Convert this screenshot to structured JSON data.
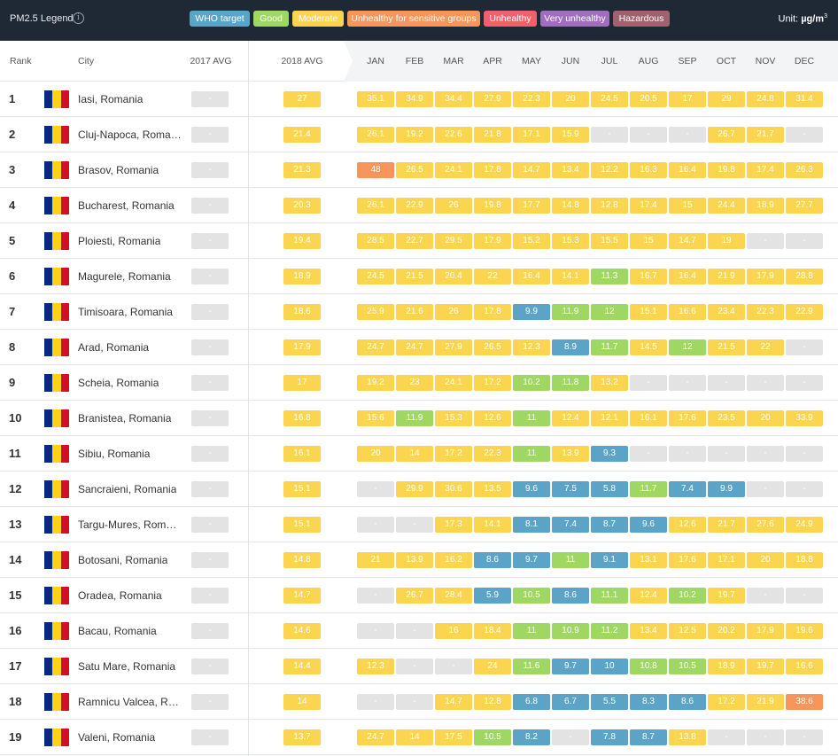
{
  "legend": {
    "title": "PM2.5 Legend",
    "info_icon": "info-icon",
    "items": [
      {
        "label": "WHO target",
        "color": "#5ba3c7"
      },
      {
        "label": "Good",
        "color": "#9ed761"
      },
      {
        "label": "Moderate",
        "color": "#fbd54f"
      },
      {
        "label": "Unhealthy for sensitive groups",
        "color": "#f7955a"
      },
      {
        "label": "Unhealthy",
        "color": "#f2616b"
      },
      {
        "label": "Very unhealthy",
        "color": "#a16dbf"
      },
      {
        "label": "Hazardous",
        "color": "#a0626e"
      }
    ],
    "unit_prefix": "Unit:",
    "unit_value": "µg/m",
    "unit_sup": "3"
  },
  "header": {
    "rank": "Rank",
    "city": "City",
    "avg2017": "2017 AVG",
    "avg2018": "2018 AVG",
    "months": [
      "JAN",
      "FEB",
      "MAR",
      "APR",
      "MAY",
      "JUN",
      "JUL",
      "AUG",
      "SEP",
      "OCT",
      "NOV",
      "DEC"
    ]
  },
  "flag_colors": [
    "#002b7f",
    "#fcd116",
    "#ce1126"
  ],
  "empty_color": "#e3e3e3",
  "empty_text": "-",
  "rows": [
    {
      "rank": "1",
      "city": "Iasi, Romania",
      "avg2017": "-",
      "avg2018": "27",
      "months": [
        "35.1",
        "34.9",
        "34.4",
        "27.9",
        "22.3",
        "20",
        "24.5",
        "20.5",
        "17",
        "29",
        "24.8",
        "31.4"
      ]
    },
    {
      "rank": "2",
      "city": "Cluj-Napoca, Romania",
      "avg2017": "-",
      "avg2018": "21.4",
      "months": [
        "26.1",
        "19.2",
        "22.6",
        "21.8",
        "17.1",
        "15.9",
        "-",
        "-",
        "-",
        "26.7",
        "21.7",
        "-"
      ]
    },
    {
      "rank": "3",
      "city": "Brasov, Romania",
      "avg2017": "-",
      "avg2018": "21.3",
      "months": [
        "48",
        "26.5",
        "24.1",
        "17.8",
        "14.7",
        "13.4",
        "12.2",
        "16.3",
        "16.4",
        "19.8",
        "17.4",
        "26.3"
      ]
    },
    {
      "rank": "4",
      "city": "Bucharest, Romania",
      "avg2017": "-",
      "avg2018": "20.3",
      "months": [
        "26.1",
        "22.9",
        "26",
        "19.8",
        "17.7",
        "14.8",
        "12.8",
        "17.4",
        "15",
        "24.4",
        "18.9",
        "27.7"
      ]
    },
    {
      "rank": "5",
      "city": "Ploiesti, Romania",
      "avg2017": "-",
      "avg2018": "19.4",
      "months": [
        "28.5",
        "22.7",
        "29.5",
        "17.9",
        "15.2",
        "15.3",
        "15.5",
        "15",
        "14.7",
        "19",
        "-",
        "-"
      ]
    },
    {
      "rank": "6",
      "city": "Magurele, Romania",
      "avg2017": "-",
      "avg2018": "18.9",
      "months": [
        "24.5",
        "21.5",
        "20.4",
        "22",
        "16.4",
        "14.1",
        "11.3",
        "16.7",
        "16.4",
        "21.9",
        "17.9",
        "28.8"
      ]
    },
    {
      "rank": "7",
      "city": "Timisoara, Romania",
      "avg2017": "-",
      "avg2018": "18.6",
      "months": [
        "25.9",
        "21.6",
        "26",
        "17.8",
        "9.9",
        "11.9",
        "12",
        "15.1",
        "16.6",
        "23.4",
        "22.3",
        "22.9"
      ]
    },
    {
      "rank": "8",
      "city": "Arad, Romania",
      "avg2017": "-",
      "avg2018": "17.9",
      "months": [
        "24.7",
        "24.7",
        "27.9",
        "26.5",
        "12.3",
        "8.9",
        "11.7",
        "14.5",
        "12",
        "21.5",
        "22",
        "-"
      ]
    },
    {
      "rank": "9",
      "city": "Scheia, Romania",
      "avg2017": "-",
      "avg2018": "17",
      "months": [
        "19.2",
        "23",
        "24.1",
        "17.2",
        "10.2",
        "11.8",
        "13.2",
        "-",
        "-",
        "-",
        "-",
        "-"
      ]
    },
    {
      "rank": "10",
      "city": "Branistea, Romania",
      "avg2017": "-",
      "avg2018": "16.8",
      "months": [
        "15.6",
        "11.9",
        "15.3",
        "12.6",
        "11",
        "12.4",
        "12.1",
        "16.1",
        "17.6",
        "23.5",
        "20",
        "33.9"
      ]
    },
    {
      "rank": "11",
      "city": "Sibiu, Romania",
      "avg2017": "-",
      "avg2018": "16.1",
      "months": [
        "20",
        "14",
        "17.2",
        "22.3",
        "11",
        "13.9",
        "9.3",
        "-",
        "-",
        "-",
        "-",
        "-"
      ]
    },
    {
      "rank": "12",
      "city": "Sancraieni, Romania",
      "avg2017": "-",
      "avg2018": "15.1",
      "months": [
        "-",
        "29.9",
        "30.6",
        "13.5",
        "9.6",
        "7.5",
        "5.8",
        "11.7",
        "7.4",
        "9.9",
        "-",
        "-"
      ]
    },
    {
      "rank": "13",
      "city": "Targu-Mures, Romania",
      "avg2017": "-",
      "avg2018": "15.1",
      "months": [
        "-",
        "-",
        "17.3",
        "14.1",
        "8.1",
        "7.4",
        "8.7",
        "9.6",
        "12.6",
        "21.7",
        "27.6",
        "24.9"
      ]
    },
    {
      "rank": "14",
      "city": "Botosani, Romania",
      "avg2017": "-",
      "avg2018": "14.8",
      "months": [
        "21",
        "13.9",
        "16.2",
        "8.6",
        "9.7",
        "11",
        "9.1",
        "13.1",
        "17.6",
        "17.1",
        "20",
        "18.8"
      ]
    },
    {
      "rank": "15",
      "city": "Oradea, Romania",
      "avg2017": "-",
      "avg2018": "14.7",
      "months": [
        "-",
        "26.7",
        "28.4",
        "5.9",
        "10.5",
        "8.6",
        "11.1",
        "12.4",
        "10.2",
        "19.7",
        "-",
        "-"
      ]
    },
    {
      "rank": "16",
      "city": "Bacau, Romania",
      "avg2017": "-",
      "avg2018": "14.6",
      "months": [
        "-",
        "-",
        "16",
        "18.4",
        "11",
        "10.9",
        "11.2",
        "13.4",
        "12.5",
        "20.2",
        "17.9",
        "19.6"
      ]
    },
    {
      "rank": "17",
      "city": "Satu Mare, Romania",
      "avg2017": "-",
      "avg2018": "14.4",
      "months": [
        "12.3",
        "-",
        "-",
        "24",
        "11.6",
        "9.7",
        "10",
        "10.8",
        "10.5",
        "18.9",
        "19.7",
        "16.6"
      ]
    },
    {
      "rank": "18",
      "city": "Ramnicu Valcea, Romania",
      "avg2017": "-",
      "avg2018": "14",
      "months": [
        "-",
        "-",
        "14.7",
        "12.8",
        "6.8",
        "6.7",
        "5.5",
        "8.3",
        "8.6",
        "17.2",
        "21.9",
        "38.6"
      ]
    },
    {
      "rank": "19",
      "city": "Valeni, Romania",
      "avg2017": "-",
      "avg2018": "13.7",
      "months": [
        "24.7",
        "14",
        "17.5",
        "10.5",
        "8.2",
        "-",
        "7.8",
        "8.7",
        "13.8",
        "-",
        "-",
        "-"
      ]
    }
  ]
}
